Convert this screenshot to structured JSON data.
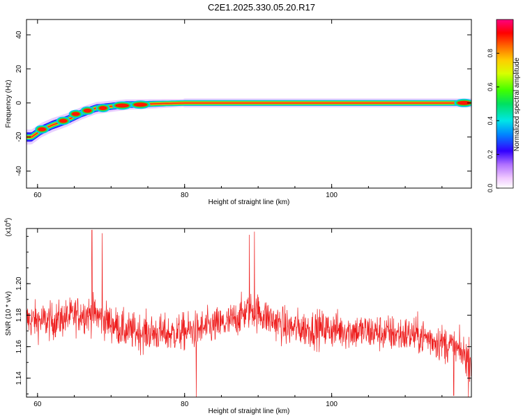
{
  "title": "C2E1.2025.330.05.20.R17",
  "colors": {
    "background": "#ffffff",
    "axis": "#000000",
    "signal": "#ee1c1c"
  },
  "chart_data": [
    {
      "type": "heatmap",
      "name": "spectrogram",
      "xlabel": "Height of straight line (km)",
      "ylabel": "Frequency (Hz)",
      "xlim": [
        58.5,
        119
      ],
      "ylim": [
        -50,
        49
      ],
      "xticks": [
        60,
        80,
        100
      ],
      "yticks": [
        -40,
        -20,
        0,
        20,
        40
      ],
      "ridge": [
        {
          "x": 59.2,
          "y": -20
        },
        {
          "x": 60.5,
          "y": -16
        },
        {
          "x": 62,
          "y": -13
        },
        {
          "x": 64,
          "y": -10
        },
        {
          "x": 66,
          "y": -6
        },
        {
          "x": 68,
          "y": -3
        },
        {
          "x": 70,
          "y": -2
        },
        {
          "x": 72,
          "y": -1
        },
        {
          "x": 76,
          "y": -0.5
        },
        {
          "x": 80,
          "y": 0
        },
        {
          "x": 118,
          "y": 0
        }
      ],
      "peaks": [
        {
          "x": 60.6,
          "y": -15.5
        },
        {
          "x": 63.5,
          "y": -10.5
        },
        {
          "x": 65.2,
          "y": -6.5
        },
        {
          "x": 66.8,
          "y": -4.5
        },
        {
          "x": 68.9,
          "y": -3
        },
        {
          "x": 71.5,
          "y": -1.5
        },
        {
          "x": 74,
          "y": -1
        },
        {
          "x": 118,
          "y": 0
        }
      ]
    },
    {
      "type": "colorbar",
      "name": "colorbar",
      "label": "Normalized spectral amplitude",
      "ylim": [
        0,
        1
      ],
      "ticks": [
        0.0,
        0.2,
        0.4,
        0.6,
        0.8
      ],
      "tick_labels": [
        "0.0",
        "0.2",
        "0.4",
        "0.6",
        "0.8"
      ]
    },
    {
      "type": "line",
      "name": "snr",
      "xlabel": "Height of straight line (km)",
      "ylabel": "SNR (10 * v/v)",
      "scale_note_base": "(x10",
      "scale_note_exp": "4",
      "scale_note_close": ")",
      "xlim": [
        58.5,
        119
      ],
      "ylim": [
        1.128,
        1.235
      ],
      "xticks": [
        60,
        80,
        100
      ],
      "yticks": [
        1.14,
        1.16,
        1.18,
        1.2
      ],
      "ytick_labels": [
        "1.14",
        "1.16",
        "1.18",
        "1.20"
      ],
      "n_points": 1500,
      "trend": [
        {
          "x": 58.5,
          "y": 1.177
        },
        {
          "x": 62,
          "y": 1.176
        },
        {
          "x": 66,
          "y": 1.181
        },
        {
          "x": 68,
          "y": 1.18
        },
        {
          "x": 72,
          "y": 1.17
        },
        {
          "x": 78,
          "y": 1.168
        },
        {
          "x": 82,
          "y": 1.171
        },
        {
          "x": 86,
          "y": 1.175
        },
        {
          "x": 89,
          "y": 1.184
        },
        {
          "x": 94,
          "y": 1.172
        },
        {
          "x": 100,
          "y": 1.171
        },
        {
          "x": 106,
          "y": 1.169
        },
        {
          "x": 112,
          "y": 1.167
        },
        {
          "x": 116,
          "y": 1.161
        },
        {
          "x": 119,
          "y": 1.152
        }
      ],
      "noise_amplitude": 0.009,
      "notable_spikes": [
        {
          "x": 67.4,
          "y": 1.234
        },
        {
          "x": 68.8,
          "y": 1.232
        },
        {
          "x": 81.6,
          "y": 1.128
        },
        {
          "x": 88.8,
          "y": 1.231
        },
        {
          "x": 89.5,
          "y": 1.233
        },
        {
          "x": 116.6,
          "y": 1.129
        },
        {
          "x": 118.6,
          "y": 1.128
        }
      ]
    }
  ]
}
